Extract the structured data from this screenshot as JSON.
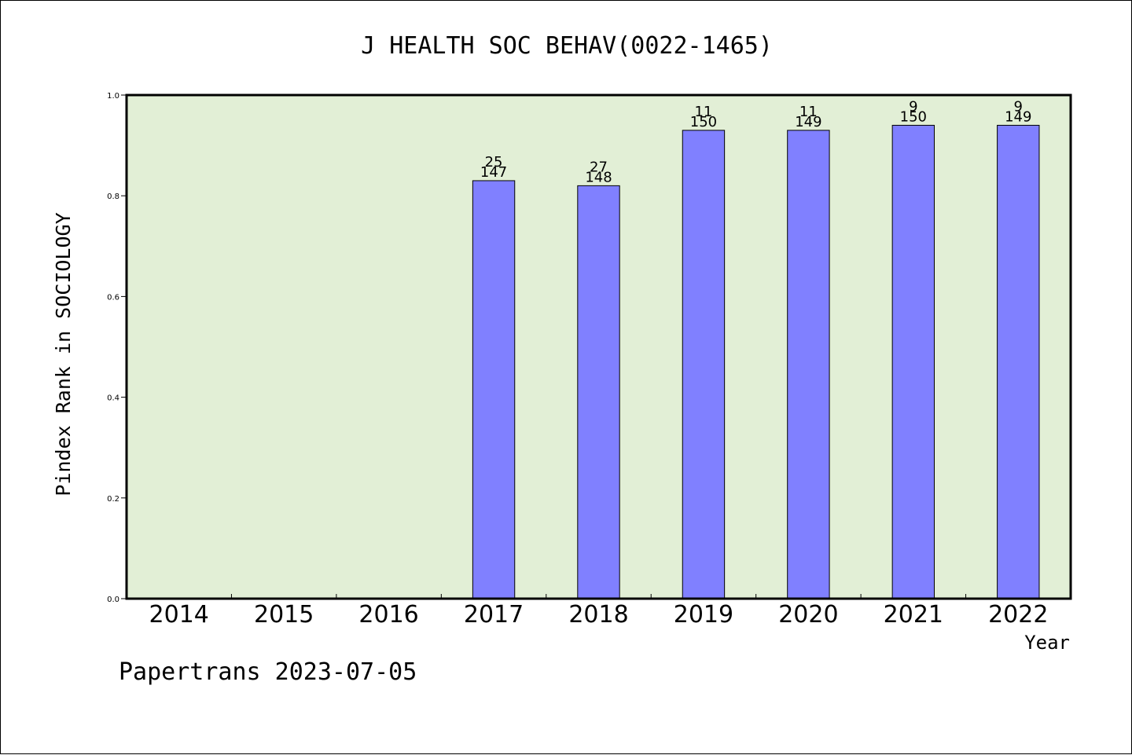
{
  "title": "J HEALTH SOC BEHAV(0022-1465)",
  "footer": "Papertrans 2023-07-05",
  "colors": {
    "plot_background": "#e2efd6",
    "bar_fill": "#8080ff",
    "bar_stroke": "#000000",
    "axis": "#000000"
  },
  "chart_data": {
    "type": "bar",
    "title": "J HEALTH SOC BEHAV(0022-1465)",
    "xlabel": "Year",
    "ylabel": "Pindex Rank in SOCIOLOGY",
    "categories": [
      "2014",
      "2015",
      "2016",
      "2017",
      "2018",
      "2019",
      "2020",
      "2021",
      "2022"
    ],
    "values": [
      null,
      null,
      null,
      0.83,
      0.82,
      0.93,
      0.93,
      0.94,
      0.94
    ],
    "rank_labels": [
      "",
      "",
      "",
      "25",
      "27",
      "11",
      "11",
      "9",
      "9"
    ],
    "total_labels": [
      "",
      "",
      "",
      "147",
      "148",
      "150",
      "149",
      "150",
      "149"
    ],
    "ylim": [
      0,
      1.0
    ],
    "yticks": [
      "0.0",
      "0.2",
      "0.4",
      "0.6",
      "0.8",
      "1.0"
    ],
    "grid": false,
    "legend": "none"
  }
}
